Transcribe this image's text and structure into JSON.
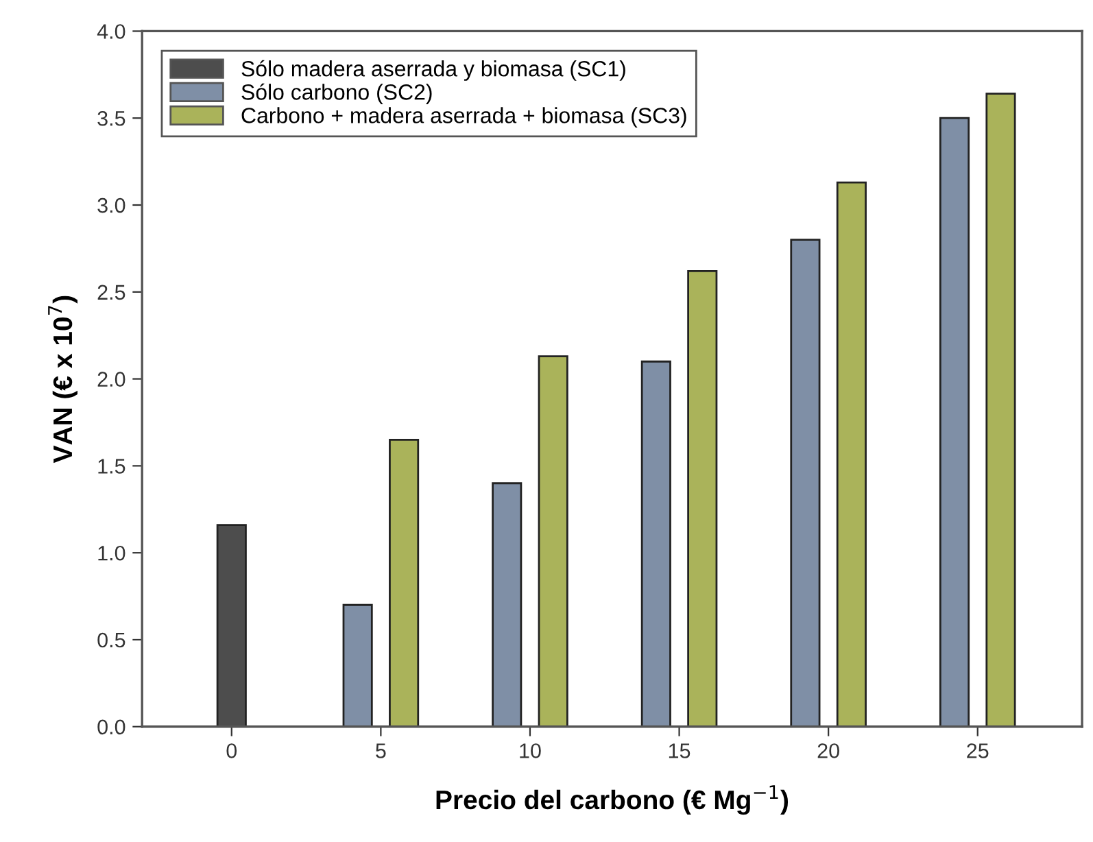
{
  "chart_data": {
    "type": "bar",
    "xlabel": "Precio del carbono (€ Mg$^{−1}$)",
    "ylabel": "VAN (€ x 10$^{7}$)",
    "categories": [
      "0",
      "5",
      "10",
      "15",
      "20",
      "25"
    ],
    "series": [
      {
        "name": "Sólo madera aserrada y biomasa (SC1)",
        "color": "#4d4d4d",
        "values": [
          1.16,
          null,
          null,
          null,
          null,
          null
        ]
      },
      {
        "name": "Sólo carbono (SC2)",
        "color": "#7f8fa6",
        "values": [
          null,
          0.7,
          1.4,
          2.1,
          2.8,
          3.5
        ]
      },
      {
        "name": "Carbono + madera aserrada + biomasa (SC3)",
        "color": "#aab35a",
        "values": [
          null,
          1.65,
          2.13,
          2.62,
          3.13,
          3.64
        ]
      }
    ],
    "ylim": [
      0,
      4.0
    ],
    "yticks": [
      {
        "value": 0,
        "label": "0.0"
      },
      0.5,
      {
        "value": 1,
        "label": "1.0"
      },
      1.5,
      {
        "value": 2,
        "label": "2.0"
      },
      2.5,
      {
        "value": 3,
        "label": "3.0"
      },
      3.5,
      {
        "value": 4,
        "label": "4.0"
      }
    ],
    "grid": false,
    "legend": "top left"
  }
}
